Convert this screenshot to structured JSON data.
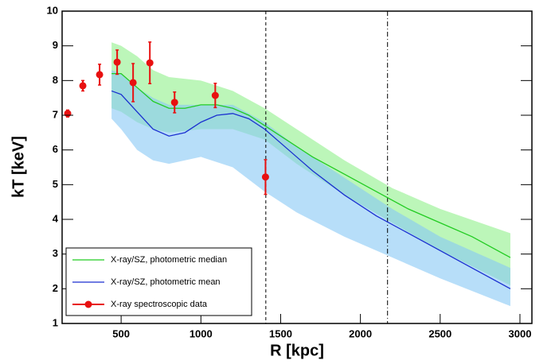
{
  "chart_data": {
    "type": "line",
    "xlabel": "R [kpc]",
    "ylabel": "kT [keV]",
    "xlim": [
      130,
      3075
    ],
    "ylim": [
      1,
      10
    ],
    "xticks": [
      500,
      1000,
      1500,
      2000,
      2500,
      3000
    ],
    "yticks": [
      1,
      2,
      3,
      4,
      5,
      6,
      7,
      8,
      9,
      10
    ],
    "legend": "bottom-left",
    "bands": [
      {
        "color": "#8ff08a",
        "opacity": 0.6,
        "x": [
          440,
          500,
          600,
          700,
          800,
          1000,
          1200,
          1400,
          1600,
          1900,
          2200,
          2500,
          2940
        ],
        "upper": [
          9.1,
          9.0,
          8.7,
          8.3,
          8.1,
          8.0,
          7.7,
          7.2,
          6.6,
          5.7,
          4.9,
          4.3,
          3.6
        ],
        "lower": [
          7.2,
          7.1,
          6.8,
          6.6,
          6.5,
          6.6,
          6.6,
          6.3,
          5.6,
          4.7,
          3.9,
          3.1,
          2.1
        ]
      },
      {
        "color": "#87c8f5",
        "opacity": 0.6,
        "x": [
          440,
          500,
          600,
          700,
          800,
          1000,
          1200,
          1400,
          1600,
          1900,
          2200,
          2500,
          2940
        ],
        "upper": [
          8.3,
          8.2,
          7.8,
          7.5,
          7.3,
          7.3,
          7.3,
          6.8,
          6.1,
          5.2,
          4.3,
          3.5,
          2.6
        ],
        "lower": [
          6.9,
          6.6,
          6.0,
          5.7,
          5.6,
          5.8,
          5.5,
          4.8,
          4.2,
          3.5,
          2.9,
          2.3,
          1.5
        ]
      }
    ],
    "series": [
      {
        "name": "X-ray/SZ, photometric median",
        "color": "#22cc22",
        "kind": "line",
        "x": [
          440,
          500,
          600,
          700,
          800,
          900,
          1000,
          1100,
          1200,
          1300,
          1400,
          1500,
          1700,
          1900,
          2100,
          2300,
          2500,
          2700,
          2940
        ],
        "values": [
          8.2,
          8.2,
          7.8,
          7.4,
          7.2,
          7.2,
          7.3,
          7.3,
          7.2,
          7.0,
          6.7,
          6.4,
          5.8,
          5.3,
          4.8,
          4.3,
          3.9,
          3.5,
          2.9
        ]
      },
      {
        "name": "X-ray/SZ, photometric mean",
        "color": "#1a2fd0",
        "kind": "line",
        "x": [
          440,
          500,
          600,
          700,
          800,
          900,
          1000,
          1100,
          1200,
          1300,
          1400,
          1500,
          1700,
          1900,
          2100,
          2300,
          2500,
          2700,
          2940
        ],
        "values": [
          7.7,
          7.6,
          7.1,
          6.6,
          6.4,
          6.5,
          6.8,
          7.0,
          7.05,
          6.9,
          6.6,
          6.2,
          5.4,
          4.7,
          4.1,
          3.6,
          3.1,
          2.6,
          2.0
        ]
      },
      {
        "name": "X-ray spectroscopic data",
        "color": "#e81010",
        "kind": "errorbar",
        "x": [
          165,
          260,
          365,
          475,
          575,
          680,
          835,
          1090,
          1405
        ],
        "values": [
          7.05,
          7.85,
          8.17,
          8.53,
          7.94,
          8.51,
          7.37,
          7.57,
          5.22
        ],
        "errors": [
          0.1,
          0.15,
          0.3,
          0.35,
          0.55,
          0.6,
          0.3,
          0.35,
          0.5
        ]
      }
    ],
    "vlines": [
      {
        "x": 1407,
        "style": "dashed"
      },
      {
        "x": 2170,
        "style": "dashdot"
      }
    ]
  }
}
